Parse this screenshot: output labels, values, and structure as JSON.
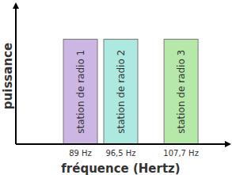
{
  "chart_data": {
    "type": "bar",
    "x_label": "fréquence (Hertz)",
    "y_label": "puissance",
    "x": [
      89,
      96.5,
      107.7
    ],
    "bar_labels": [
      "station de radio 1",
      "station de radio 2",
      "station de radio 3"
    ],
    "values": [
      0.77,
      0.77,
      0.77
    ],
    "colors": [
      "#cbb6e4",
      "#aee9df",
      "#b6e9a9"
    ],
    "xlim": [
      77,
      116
    ],
    "xticks": [
      {
        "value": 89,
        "label": "89 Hz"
      },
      {
        "value": 96.5,
        "label": "96,5 Hz"
      },
      {
        "value": 107.7,
        "label": "107,7 Hz"
      }
    ],
    "ylim": [
      0,
      1
    ],
    "tick_labels": "x",
    "grid": false
  }
}
